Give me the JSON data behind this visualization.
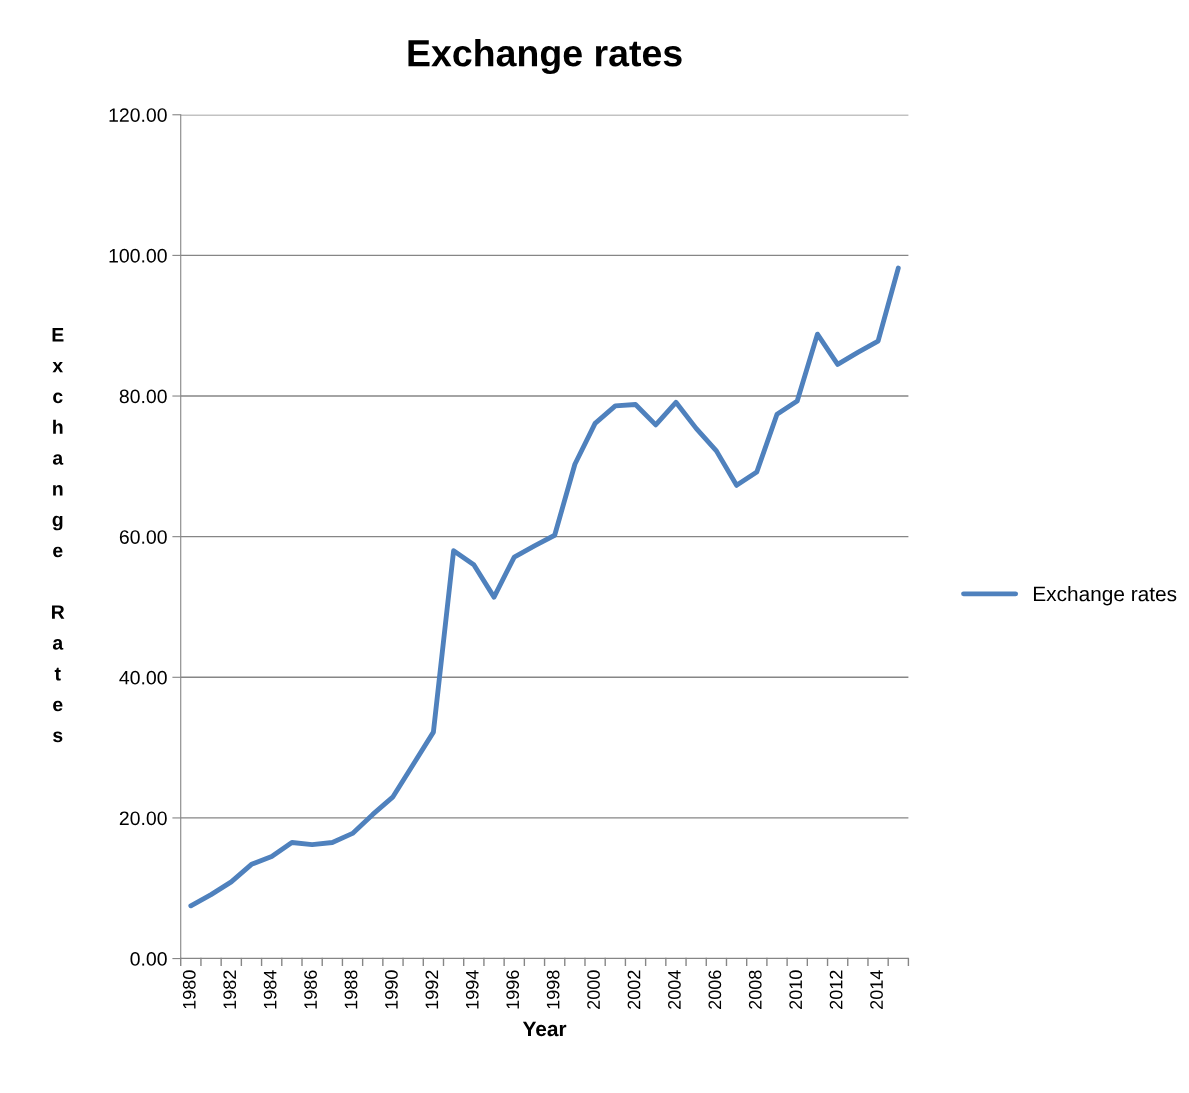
{
  "chart_data": {
    "type": "line",
    "title": "Exchange rates",
    "xlabel": "Year",
    "ylabel": "Exchange Rates",
    "categories": [
      "1980",
      null,
      "1982",
      null,
      "1984",
      null,
      "1986",
      null,
      "1988",
      null,
      "1990",
      null,
      "1992",
      null,
      "1994",
      null,
      "1996",
      null,
      "1998",
      null,
      "2000",
      null,
      "2002",
      null,
      "2004",
      null,
      "2006",
      null,
      "2008",
      null,
      "2010",
      null,
      "2012",
      null,
      "2014",
      null
    ],
    "series": [
      {
        "name": "Exchange rates",
        "color": "#4f81bd",
        "values": [
          7.5,
          9.1,
          10.9,
          13.4,
          14.5,
          16.5,
          16.2,
          16.5,
          17.8,
          20.5,
          23.0,
          27.6,
          32.2,
          58.0,
          56.0,
          51.4,
          57.1,
          58.7,
          60.2,
          70.3,
          76.1,
          78.6,
          78.8,
          75.9,
          79.1,
          75.4,
          72.2,
          67.3,
          69.2,
          77.4,
          79.3,
          88.8,
          84.5,
          86.2,
          87.8,
          98.2
        ]
      }
    ],
    "ylim": [
      0,
      120
    ],
    "yticks": [
      {
        "value": 0,
        "label": "0.00"
      },
      {
        "value": 20,
        "label": "20.00"
      },
      {
        "value": 40,
        "label": "40.00"
      },
      {
        "value": 60,
        "label": "60.00"
      },
      {
        "value": 80,
        "label": "80.00"
      },
      {
        "value": 100,
        "label": "100.00"
      },
      {
        "value": 120,
        "label": "120.00"
      }
    ],
    "grid": "y",
    "legend": "right",
    "marker": "none",
    "line_style": "solid"
  }
}
